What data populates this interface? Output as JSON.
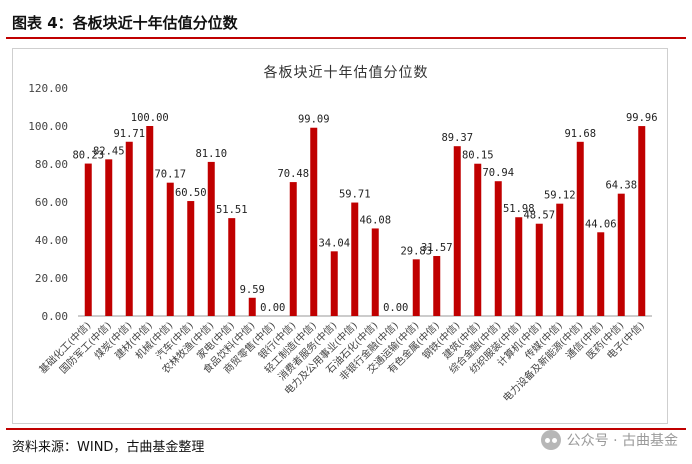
{
  "header": {
    "title": "图表 4：各板块近十年估值分位数"
  },
  "footer": {
    "source": "资料来源：WIND，古曲基金整理",
    "watermark": "公众号 · 古曲基金"
  },
  "colors": {
    "accent": "#c00000",
    "bar": "#c00000"
  },
  "chart_data": {
    "type": "bar",
    "title": "各板块近十年估值分位数",
    "xlabel": "",
    "ylabel": "",
    "ylim": [
      0,
      120
    ],
    "yticks": [
      "0.00",
      "20.00",
      "40.00",
      "60.00",
      "80.00",
      "100.00",
      "120.00"
    ],
    "grid": false,
    "legend": "none",
    "categories": [
      "基础化工(中信)",
      "国防军工(中信)",
      "煤炭(中信)",
      "建材(中信)",
      "机械(中信)",
      "汽车(中信)",
      "农林牧渔(中信)",
      "家电(中信)",
      "食品饮料(中信)",
      "商贸零售(中信)",
      "银行(中信)",
      "轻工制造(中信)",
      "消费者服务(中信)",
      "电力及公用事业(中信)",
      "石油石化(中信)",
      "非银行金融(中信)",
      "交通运输(中信)",
      "有色金属(中信)",
      "钢铁(中信)",
      "建筑(中信)",
      "综合金融(中信)",
      "纺织服装(中信)",
      "计算机(中信)",
      "传媒(中信)",
      "电力设备及新能源(中信)",
      "通信(中信)",
      "医药(中信)",
      "电子(中信)"
    ],
    "values": [
      80.23,
      82.45,
      91.71,
      100.0,
      70.17,
      60.5,
      81.1,
      51.51,
      9.59,
      0.0,
      70.48,
      99.09,
      34.04,
      59.71,
      46.08,
      0.0,
      29.83,
      31.57,
      89.37,
      80.15,
      70.94,
      51.98,
      48.57,
      59.12,
      91.68,
      44.06,
      64.38,
      99.96
    ],
    "labels": [
      "80.23",
      "82.45",
      "91.71",
      "100.00",
      "70.17",
      "60.50",
      "81.10",
      "51.51",
      "9.59",
      "0.00",
      "70.48",
      "99.09",
      "34.04",
      "59.71",
      "46.08",
      "0.00",
      "29.83",
      "31.57",
      "89.37",
      "80.15",
      "70.94",
      "51.98",
      "48.57",
      "59.12",
      "91.68",
      "44.06",
      "64.38",
      "99.96"
    ]
  }
}
